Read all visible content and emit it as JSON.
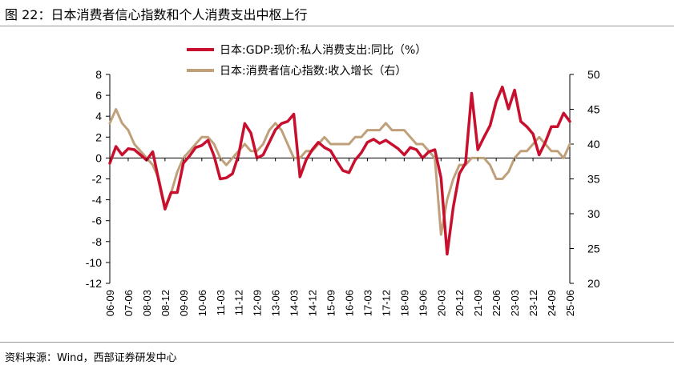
{
  "figure_title": "图 22：日本消费者信心指数和个人消费支出中枢上行",
  "source_note": "资料来源：Wind，西部证券研发中心",
  "chart_data": {
    "type": "line",
    "title": "",
    "left_axis": {
      "min": -12,
      "max": 8,
      "step": 2,
      "ticks": [
        "8",
        "6",
        "4",
        "2",
        "0",
        "-2",
        "-4",
        "-6",
        "-8",
        "-10",
        "-12"
      ]
    },
    "right_axis": {
      "min": 20,
      "max": 50,
      "step": 5,
      "ticks": [
        "50",
        "45",
        "40",
        "35",
        "30",
        "25",
        "20"
      ]
    },
    "x_tick_labels": [
      "06-09",
      "07-06",
      "08-03",
      "08-12",
      "09-09",
      "10-06",
      "11-03",
      "11-12",
      "12-09",
      "13-06",
      "14-03",
      "14-12",
      "15-09",
      "16-06",
      "17-03",
      "17-12",
      "18-09",
      "19-06",
      "20-03",
      "20-12",
      "21-09",
      "22-06",
      "23-03",
      "23-12",
      "24-09",
      "25-06"
    ],
    "grid": false,
    "legend_placement": "top",
    "series": [
      {
        "name": "日本:GDP:现价:私人消费支出:同比（%）",
        "axis": "left",
        "color": "#C8102E",
        "x": [
          "2006-09",
          "2006-12",
          "2007-03",
          "2007-06",
          "2007-09",
          "2007-12",
          "2008-03",
          "2008-06",
          "2008-09",
          "2008-12",
          "2009-03",
          "2009-06",
          "2009-09",
          "2009-12",
          "2010-03",
          "2010-06",
          "2010-09",
          "2010-12",
          "2011-03",
          "2011-06",
          "2011-09",
          "2011-12",
          "2012-03",
          "2012-06",
          "2012-09",
          "2012-12",
          "2013-03",
          "2013-06",
          "2013-09",
          "2013-12",
          "2014-03",
          "2014-06",
          "2014-09",
          "2014-12",
          "2015-03",
          "2015-06",
          "2015-09",
          "2015-12",
          "2016-03",
          "2016-06",
          "2016-09",
          "2016-12",
          "2017-03",
          "2017-06",
          "2017-09",
          "2017-12",
          "2018-03",
          "2018-06",
          "2018-09",
          "2018-12",
          "2019-03",
          "2019-06",
          "2019-09",
          "2019-12",
          "2020-03",
          "2020-06",
          "2020-09",
          "2020-12",
          "2021-03",
          "2021-06",
          "2021-09",
          "2021-12",
          "2022-03",
          "2022-06",
          "2022-09",
          "2022-12",
          "2023-03",
          "2023-06",
          "2023-09",
          "2023-12",
          "2024-03",
          "2024-06",
          "2024-09",
          "2024-12",
          "2025-03",
          "2025-06"
        ],
        "values": [
          -0.5,
          1.1,
          0.3,
          0.9,
          0.8,
          0.3,
          -0.2,
          0.6,
          -2.2,
          -4.9,
          -3.3,
          -3.3,
          -0.5,
          0.2,
          1.0,
          1.2,
          1.7,
          0.2,
          -2.0,
          -1.9,
          -1.5,
          0.3,
          3.3,
          2.4,
          0.0,
          0.3,
          1.5,
          2.7,
          3.3,
          3.5,
          4.2,
          -1.8,
          -0.2,
          0.8,
          1.5,
          1.0,
          0.7,
          -0.3,
          -1.2,
          -1.4,
          -0.2,
          0.5,
          1.5,
          1.8,
          1.4,
          1.7,
          1.3,
          0.9,
          0.3,
          1.0,
          0.8,
          0.0,
          0.6,
          0.8,
          -1.9,
          -9.2,
          -4.7,
          -1.5,
          -0.5,
          6.2,
          0.8,
          2.0,
          3.1,
          5.4,
          6.8,
          4.7,
          6.5,
          3.5,
          3.0,
          2.3,
          0.3,
          1.5,
          3.0,
          3.0,
          4.3,
          3.5
        ]
      },
      {
        "name": "日本:消费者信心指数:收入增长（右）",
        "axis": "right",
        "color": "#BFA07A",
        "x": [
          "2006-09",
          "2006-12",
          "2007-03",
          "2007-06",
          "2007-09",
          "2007-12",
          "2008-03",
          "2008-06",
          "2008-09",
          "2008-12",
          "2009-03",
          "2009-06",
          "2009-09",
          "2009-12",
          "2010-03",
          "2010-06",
          "2010-09",
          "2010-12",
          "2011-03",
          "2011-06",
          "2011-09",
          "2011-12",
          "2012-03",
          "2012-06",
          "2012-09",
          "2012-12",
          "2013-03",
          "2013-06",
          "2013-09",
          "2013-12",
          "2014-03",
          "2014-06",
          "2014-09",
          "2014-12",
          "2015-03",
          "2015-06",
          "2015-09",
          "2015-12",
          "2016-03",
          "2016-06",
          "2016-09",
          "2016-12",
          "2017-03",
          "2017-06",
          "2017-09",
          "2017-12",
          "2018-03",
          "2018-06",
          "2018-09",
          "2018-12",
          "2019-03",
          "2019-06",
          "2019-09",
          "2019-12",
          "2020-03",
          "2020-06",
          "2020-09",
          "2020-12",
          "2021-03",
          "2021-06",
          "2021-09",
          "2021-12",
          "2022-03",
          "2022-06",
          "2022-09",
          "2022-12",
          "2023-03",
          "2023-06",
          "2023-09",
          "2023-12",
          "2024-03",
          "2024-06",
          "2024-09",
          "2024-12",
          "2025-03",
          "2025-06"
        ],
        "values": [
          43,
          45,
          43,
          42,
          40,
          39,
          38,
          37,
          35,
          31,
          33,
          36,
          38,
          39,
          40,
          41,
          41,
          40,
          38,
          37,
          38,
          39,
          40,
          39,
          39,
          40,
          42,
          43,
          42,
          40,
          38,
          38,
          39,
          39,
          40,
          41,
          40,
          40,
          40,
          40,
          41,
          41,
          42,
          42,
          42,
          43,
          42,
          42,
          42,
          41,
          40,
          40,
          39,
          38,
          27,
          32,
          35,
          37,
          37,
          38,
          38,
          38,
          37,
          35,
          35,
          36,
          38,
          39,
          39,
          40,
          41,
          40,
          39,
          39,
          38,
          40
        ]
      }
    ]
  }
}
